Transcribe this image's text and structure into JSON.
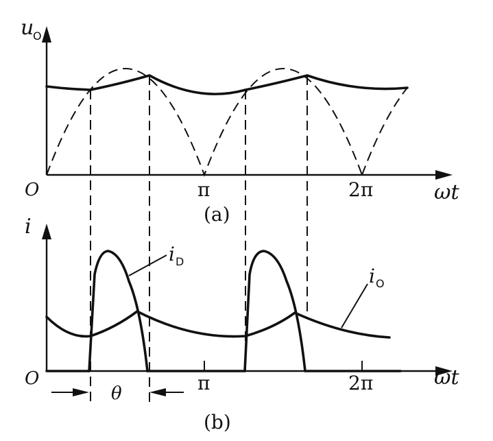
{
  "diagram": {
    "top_panel": {
      "y_axis_label": "u",
      "y_axis_sub": "O",
      "x_axis_label": "ωt",
      "origin": "O",
      "tick_pi": "π",
      "tick_2pi": "2π",
      "caption": "(a)"
    },
    "bottom_panel": {
      "y_axis_label": "i",
      "x_axis_label": "ωt",
      "origin": "O",
      "tick_pi": "π",
      "tick_2pi": "2π",
      "caption": "(b)",
      "diode_current_label": "i",
      "diode_current_sub": "D",
      "output_current_label": "i",
      "output_current_sub": "O",
      "conduction_angle_label": "θ"
    }
  }
}
